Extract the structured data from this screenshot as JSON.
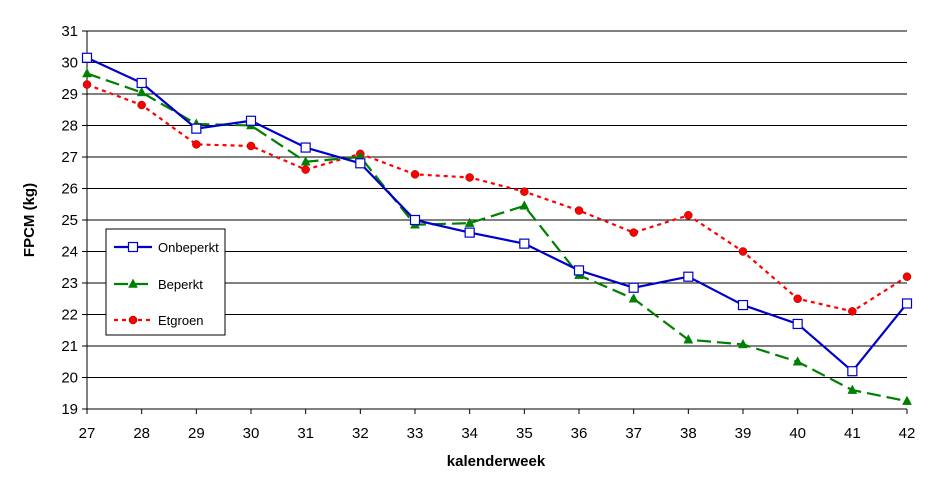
{
  "chart_data": {
    "type": "line",
    "xlabel": "kalenderweek",
    "ylabel": "FPCM (kg)",
    "x": [
      27,
      28,
      29,
      30,
      31,
      32,
      33,
      34,
      35,
      36,
      37,
      38,
      39,
      40,
      41,
      42
    ],
    "ylim": [
      19,
      31
    ],
    "yticks": [
      19,
      20,
      21,
      22,
      23,
      24,
      25,
      26,
      27,
      28,
      29,
      30,
      31
    ],
    "grid": "horizontal",
    "legend_position": "left",
    "series": [
      {
        "name": "Onbeperkt",
        "color": "#0000CC",
        "line_style": "solid",
        "marker": "open-square",
        "values": [
          30.15,
          29.35,
          27.9,
          28.15,
          27.3,
          26.8,
          25.0,
          24.6,
          24.25,
          23.4,
          22.85,
          23.2,
          22.3,
          21.7,
          20.2,
          22.35
        ]
      },
      {
        "name": "Beperkt",
        "color": "#008000",
        "line_style": "dashed",
        "marker": "triangle",
        "values": [
          29.65,
          29.05,
          28.05,
          28.0,
          26.85,
          27.0,
          24.85,
          24.9,
          25.45,
          23.25,
          22.5,
          21.2,
          21.05,
          20.5,
          19.6,
          19.25
        ]
      },
      {
        "name": "Etgroen",
        "color": "#FF0000",
        "line_style": "dotted",
        "marker": "circle",
        "values": [
          29.3,
          28.65,
          27.4,
          27.35,
          26.6,
          27.1,
          26.45,
          26.35,
          25.9,
          25.3,
          24.6,
          25.15,
          24.0,
          22.5,
          22.1,
          23.2
        ]
      }
    ]
  }
}
